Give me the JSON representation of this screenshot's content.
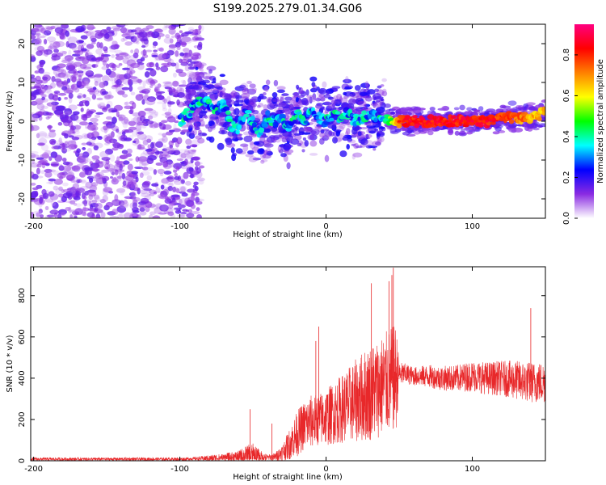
{
  "title": "S199.2025.279.01.34.G06",
  "chart_data": [
    {
      "type": "heatmap",
      "description_of_marks": "spectrogram blobs",
      "xlabel": "Height of straight line (km)",
      "ylabel": "Frequency (Hz)",
      "xlim": [
        -202,
        150
      ],
      "ylim": [
        -25,
        25
      ],
      "xticks": [
        -200,
        -100,
        0,
        100
      ],
      "xtick_labels": [
        "-200",
        "-100",
        "0",
        "100"
      ],
      "yticks": [
        -20,
        -10,
        0,
        10,
        20
      ],
      "ytick_labels": [
        "-20",
        "-10",
        "0",
        "10",
        "20"
      ],
      "colorbar": {
        "label": "Normalized spectral amplitude",
        "range": [
          0,
          0.95
        ],
        "ticks": [
          0,
          0.2,
          0.4,
          0.6,
          0.8
        ],
        "tick_labels": [
          "0.0",
          "0.2",
          "0.4",
          "0.6",
          "0.8"
        ],
        "colors": [
          "#ffffff",
          "#8a2be2",
          "#0000ff",
          "#00ffff",
          "#00ff00",
          "#ffff00",
          "#ff8000",
          "#ff0000",
          "#ff0080"
        ]
      },
      "ridge": {
        "x": [
          -100,
          -92,
          -85,
          -80,
          -75,
          -70,
          -65,
          -60,
          -55,
          -50,
          -45,
          -40,
          -35,
          -30,
          -25,
          -20,
          -15,
          -10,
          -5,
          0,
          5,
          10,
          15,
          20,
          25,
          30,
          35,
          40,
          45,
          50,
          60,
          70,
          80,
          90,
          100,
          110,
          120,
          130,
          140,
          150
        ],
        "frequency": [
          0,
          3,
          6,
          5,
          3,
          4,
          -1,
          -2,
          2,
          0,
          -3,
          1,
          0,
          1,
          -2,
          2,
          0,
          3,
          1,
          0,
          2,
          1,
          2,
          0,
          1,
          2,
          1,
          1,
          0,
          0,
          0,
          0,
          0,
          0,
          0,
          0,
          1,
          1,
          1,
          2
        ]
      }
    },
    {
      "type": "line",
      "xlabel": "Height of straight line (km)",
      "ylabel": "SNR (10 * v/v)",
      "xlim": [
        -202,
        150
      ],
      "ylim": [
        0,
        940
      ],
      "xticks": [
        -200,
        -100,
        0,
        100
      ],
      "xtick_labels": [
        "-200",
        "-100",
        "0",
        "100"
      ],
      "yticks": [
        0,
        200,
        400,
        600,
        800
      ],
      "ytick_labels": [
        "0",
        "200",
        "400",
        "600",
        "800"
      ],
      "color": "#e8282a",
      "envelope": {
        "x": [
          -202,
          -100,
          -90,
          -80,
          -70,
          -60,
          -55,
          -50,
          -45,
          -40,
          -35,
          -30,
          -25,
          -20,
          -15,
          -10,
          -5,
          0,
          5,
          10,
          15,
          20,
          25,
          30,
          35,
          40,
          45,
          48,
          50,
          55,
          60,
          70,
          80,
          90,
          100,
          110,
          120,
          130,
          140,
          150
        ],
        "baseline": [
          8,
          8,
          10,
          12,
          15,
          18,
          22,
          25,
          20,
          15,
          18,
          40,
          80,
          130,
          170,
          190,
          200,
          210,
          230,
          250,
          270,
          290,
          310,
          330,
          350,
          370,
          390,
          400,
          420,
          420,
          410,
          410,
          400,
          400,
          410,
          400,
          400,
          390,
          380,
          380
        ],
        "amplitude": [
          15,
          15,
          15,
          30,
          40,
          60,
          100,
          120,
          60,
          30,
          40,
          80,
          150,
          220,
          240,
          260,
          250,
          280,
          300,
          330,
          360,
          400,
          440,
          470,
          480,
          500,
          520,
          520,
          120,
          100,
          90,
          110,
          120,
          130,
          150,
          160,
          170,
          190,
          200,
          200
        ],
        "peaks": [
          {
            "x": -52,
            "y": 250
          },
          {
            "x": -37,
            "y": 180
          },
          {
            "x": -7,
            "y": 580
          },
          {
            "x": -5,
            "y": 650
          },
          {
            "x": 31,
            "y": 860
          },
          {
            "x": 43,
            "y": 870
          },
          {
            "x": 45,
            "y": 900
          },
          {
            "x": 46,
            "y": 935
          },
          {
            "x": 140,
            "y": 740
          }
        ]
      }
    }
  ]
}
